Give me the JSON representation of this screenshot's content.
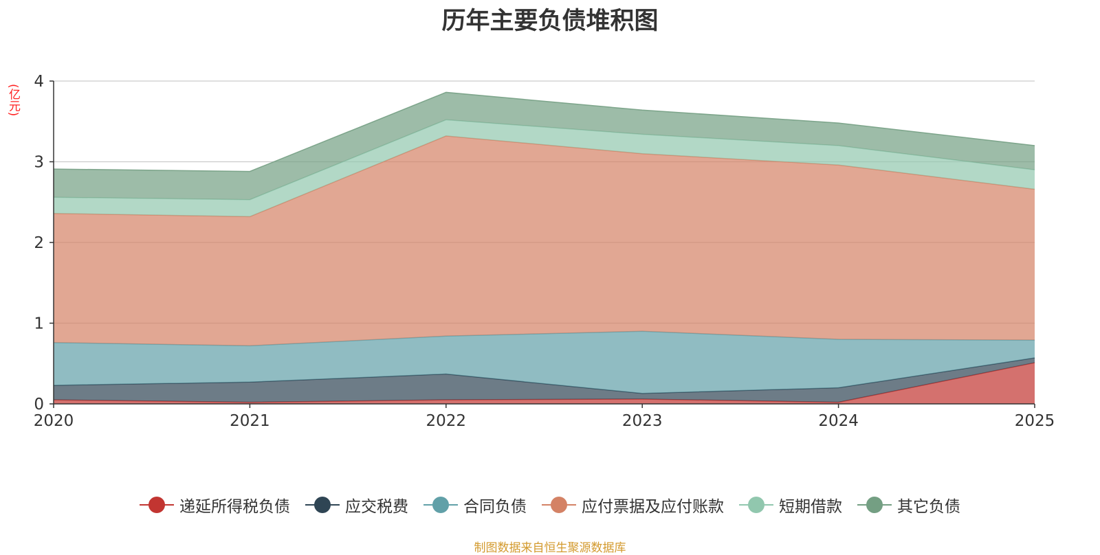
{
  "chart_data": {
    "type": "area",
    "stacked": true,
    "title": "历年主要负债堆积图",
    "ylabel": "(亿元)",
    "xlabel": "",
    "x": [
      "2020",
      "2021",
      "2022",
      "2023",
      "2024",
      "2025"
    ],
    "ylim": [
      0,
      4
    ],
    "yticks": [
      0,
      1,
      2,
      3,
      4
    ],
    "grid": true,
    "legend_position": "bottom",
    "series": [
      {
        "name": "递延所得税负债",
        "color": "#c23531",
        "values": [
          0.05,
          0.02,
          0.05,
          0.06,
          0.02,
          0.51
        ]
      },
      {
        "name": "应交税费",
        "color": "#2f4554",
        "values": [
          0.18,
          0.25,
          0.32,
          0.07,
          0.18,
          0.06
        ]
      },
      {
        "name": "合同负债",
        "color": "#61a0a8",
        "values": [
          0.53,
          0.45,
          0.47,
          0.77,
          0.6,
          0.22
        ]
      },
      {
        "name": "应付票据及应付账款",
        "color": "#d48265",
        "values": [
          1.6,
          1.6,
          2.48,
          2.2,
          2.16,
          1.87
        ]
      },
      {
        "name": "短期借款",
        "color": "#91c7ae",
        "values": [
          0.2,
          0.21,
          0.2,
          0.24,
          0.24,
          0.24
        ]
      },
      {
        "name": "其它负债",
        "color": "#749f83",
        "values": [
          0.35,
          0.35,
          0.34,
          0.3,
          0.28,
          0.3
        ]
      }
    ]
  },
  "source_text": "制图数据来自恒生聚源数据库"
}
